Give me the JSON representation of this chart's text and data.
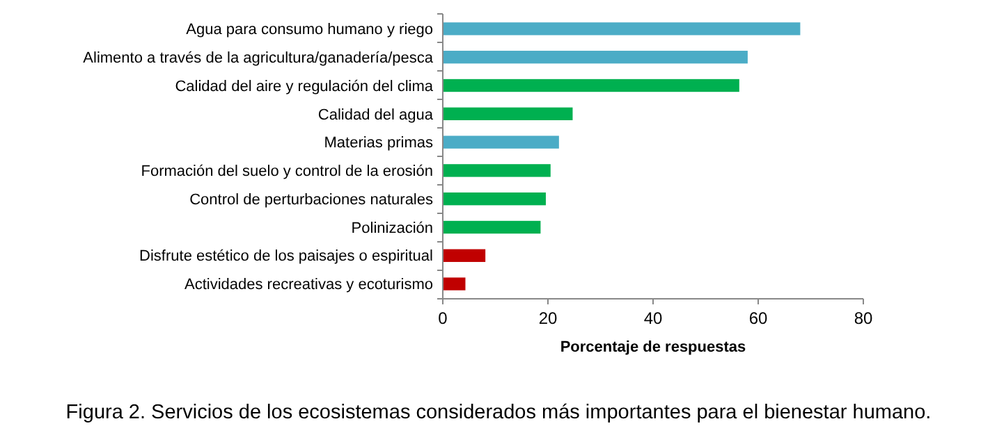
{
  "chart_data": {
    "type": "bar",
    "orientation": "horizontal",
    "categories": [
      "Agua para consumo humano y riego",
      "Alimento a través de la agricultura/ganadería/pesca",
      "Calidad del aire y regulación del clima",
      "Calidad del agua",
      "Materias primas",
      "Formación del suelo y control de la erosión",
      "Control de perturbaciones naturales",
      "Polinización",
      "Disfrute estético de los paisajes o espiritual",
      "Actividades recreativas y ecoturismo"
    ],
    "values": [
      68,
      58,
      56.4,
      24.7,
      22.1,
      20.5,
      19.6,
      18.6,
      8.1,
      4.3
    ],
    "colors": [
      "#4bacc6",
      "#4bacc6",
      "#00b050",
      "#00b050",
      "#4bacc6",
      "#00b050",
      "#00b050",
      "#00b050",
      "#c00000",
      "#c00000"
    ],
    "xlim": [
      0,
      80
    ],
    "xticks": [
      0,
      20,
      40,
      60,
      80
    ],
    "xlabel": "Porcentaje de respuestas",
    "annotations": [
      "Figura 2. Servicios de los ecosistemas considerados más importantes para el bienestar humano."
    ]
  }
}
